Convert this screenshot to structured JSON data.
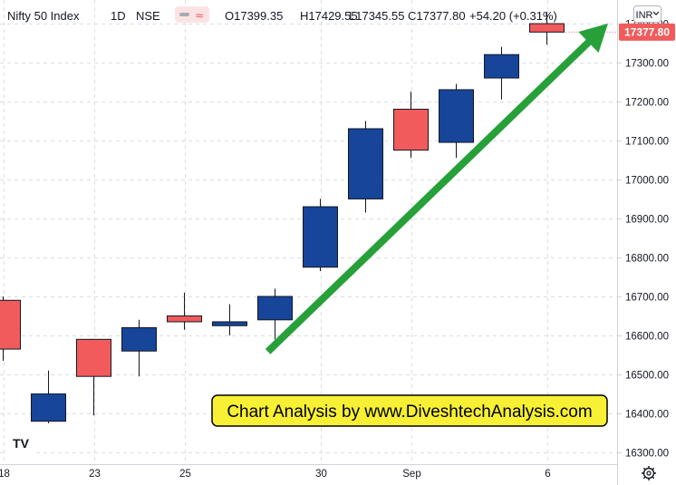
{
  "chart_data": {
    "type": "candlestick",
    "title": "Nifty 50 Index",
    "interval": "1D",
    "exchange": "NSE",
    "currency": "INR",
    "ohlc_summary": {
      "open": "O17399.35",
      "high": "H17429.55",
      "low": "L17345.55",
      "close": "C17377.80",
      "change": "+54.20 (+0.31%)"
    },
    "last_price_label": "17377.80",
    "y_axis": {
      "range": [
        16270,
        17460
      ],
      "ticks": [
        "16300.00",
        "16400.00",
        "16500.00",
        "16600.00",
        "16700.00",
        "16800.00",
        "16900.00",
        "17000.00",
        "17100.00",
        "17200.00",
        "17300.00",
        "17400.00"
      ],
      "tick_values": [
        16300,
        16400,
        16500,
        16600,
        16700,
        16800,
        16900,
        17000,
        17100,
        17200,
        17300,
        17400
      ]
    },
    "x_axis": {
      "ticks": [
        "18",
        "23",
        "25",
        "30",
        "Sep",
        "6"
      ],
      "tick_bar_index": [
        0,
        2,
        4,
        7,
        9,
        12
      ]
    },
    "candles": [
      {
        "o": 16690,
        "h": 16700,
        "l": 16535,
        "c": 16565,
        "dir": "down"
      },
      {
        "o": 16380,
        "h": 16510,
        "l": 16375,
        "c": 16450,
        "dir": "up"
      },
      {
        "o": 16590,
        "h": 16590,
        "l": 16395,
        "c": 16495,
        "dir": "down"
      },
      {
        "o": 16560,
        "h": 16640,
        "l": 16495,
        "c": 16620,
        "dir": "up"
      },
      {
        "o": 16650,
        "h": 16710,
        "l": 16615,
        "c": 16635,
        "dir": "down"
      },
      {
        "o": 16625,
        "h": 16680,
        "l": 16600,
        "c": 16635,
        "dir": "up"
      },
      {
        "o": 16640,
        "h": 16720,
        "l": 16590,
        "c": 16700,
        "dir": "up"
      },
      {
        "o": 16775,
        "h": 16950,
        "l": 16765,
        "c": 16930,
        "dir": "up"
      },
      {
        "o": 16950,
        "h": 17150,
        "l": 16915,
        "c": 17130,
        "dir": "up"
      },
      {
        "o": 17180,
        "h": 17225,
        "l": 17055,
        "c": 17075,
        "dir": "down"
      },
      {
        "o": 17095,
        "h": 17245,
        "l": 17055,
        "c": 17230,
        "dir": "up"
      },
      {
        "o": 17260,
        "h": 17340,
        "l": 17205,
        "c": 17320,
        "dir": "up"
      },
      {
        "o": 17399.35,
        "h": 17429.55,
        "l": 17345.55,
        "c": 17377.8,
        "dir": "down"
      }
    ],
    "annotation": "Chart Analysis by www.DiveshtechAnalysis.com",
    "trend_arrow": {
      "from_bar": 5.9,
      "from_price": 16565,
      "to_bar": 13.35,
      "to_price": 17400
    },
    "grid": true,
    "colors": {
      "up": "#16459a",
      "down": "#f15b5b",
      "arrow": "#27a03a",
      "banner_bg": "#f7f034",
      "price_label_bg": "#f15b5b",
      "grid": "#d9dde3"
    }
  },
  "toolbar": {
    "logo": "TV",
    "currency_button": "INR",
    "settings_icon": "gear-icon"
  }
}
